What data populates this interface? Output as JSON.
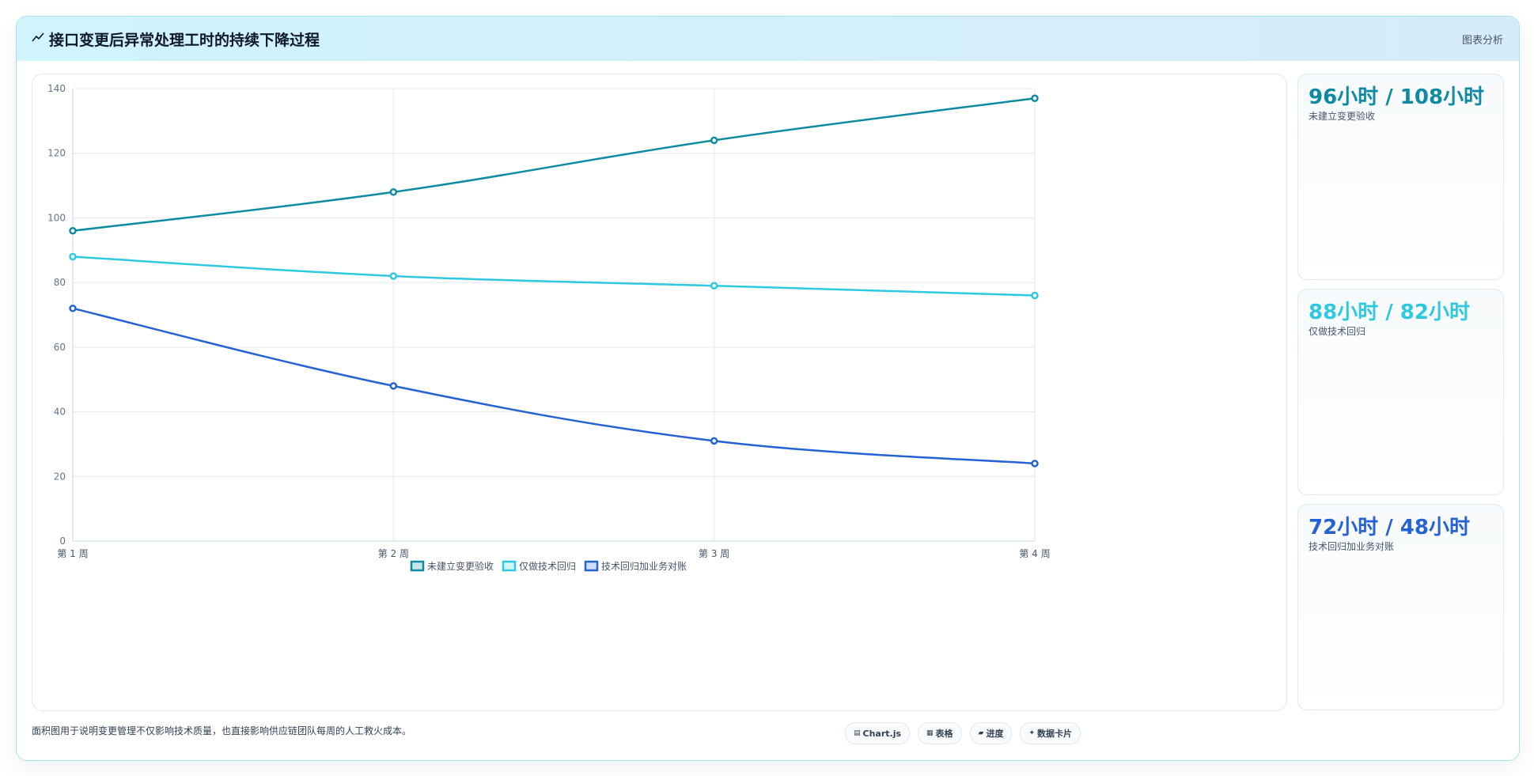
{
  "header": {
    "title": "接口变更后异常处理工时的持续下降过程",
    "tag": "图表分析"
  },
  "chart_data": {
    "type": "line",
    "categories": [
      "第 1 周",
      "第 2 周",
      "第 3 周",
      "第 4 周"
    ],
    "series": [
      {
        "name": "未建立变更验收",
        "values": [
          96,
          108,
          124,
          137
        ],
        "color": "#0e8aa3"
      },
      {
        "name": "仅做技术回归",
        "values": [
          88,
          82,
          79,
          76
        ],
        "color": "#2ec9e0"
      },
      {
        "name": "技术回归加业务对账",
        "values": [
          72,
          48,
          31,
          24
        ],
        "color": "#2563d4"
      }
    ],
    "ylim": [
      0,
      140
    ],
    "yticks": [
      0,
      20,
      40,
      60,
      80,
      100,
      120,
      140
    ],
    "xlabel": "",
    "ylabel": "",
    "grid": true,
    "legend": "bottom"
  },
  "stats": [
    {
      "value": "96小时 / 108小时",
      "label": "未建立变更验收",
      "color": "#0e8aa3"
    },
    {
      "value": "88小时 / 82小时",
      "label": "仅做技术回归",
      "color": "#2ec9e0"
    },
    {
      "value": "72小时 / 48小时",
      "label": "技术回归加业务对账",
      "color": "#2563d4"
    }
  ],
  "footer": {
    "note": "面积图用于说明变更管理不仅影响技术质量，也直接影响供应链团队每周的人工救火成本。",
    "chips": [
      {
        "icon": "▤",
        "label": "Chart.js"
      },
      {
        "icon": "▦",
        "label": "表格"
      },
      {
        "icon": "▰",
        "label": "进度"
      },
      {
        "icon": "✦",
        "label": "数据卡片"
      }
    ]
  }
}
